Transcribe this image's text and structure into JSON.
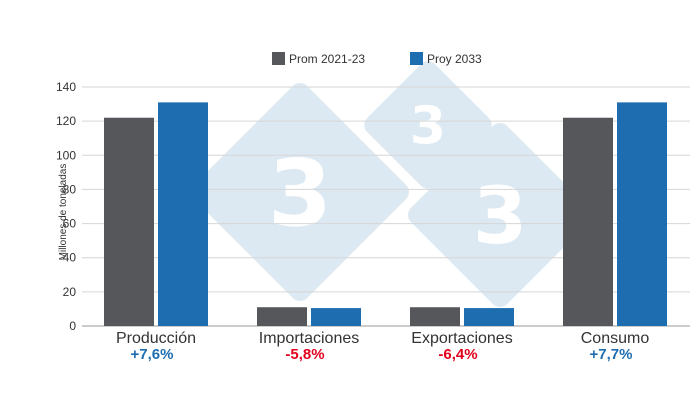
{
  "chart_data": {
    "type": "bar",
    "ylabel": "Millones de toneladas",
    "ylim": [
      0,
      140
    ],
    "yticks": [
      0,
      20,
      40,
      60,
      80,
      100,
      120,
      140
    ],
    "grid": true,
    "legend_position": "top",
    "categories": [
      "Producción",
      "Importaciones",
      "Exportaciones",
      "Consumo"
    ],
    "series": [
      {
        "name": "Prom 2021-23",
        "color": "#55575b",
        "values": [
          122,
          11,
          11,
          122
        ]
      },
      {
        "name": "Proy 2033",
        "color": "#1f6db1",
        "values": [
          131,
          10.5,
          10.5,
          131
        ]
      }
    ],
    "annotations": [
      {
        "category": "Producción",
        "text": "+7,6%",
        "color": "#1f6db1"
      },
      {
        "category": "Importaciones",
        "text": "-5,8%",
        "color": "#e3001b"
      },
      {
        "category": "Exportaciones",
        "text": "-6,4%",
        "color": "#e3001b"
      },
      {
        "category": "Consumo",
        "text": "+7,7%",
        "color": "#1f6db1"
      }
    ]
  },
  "watermark": {
    "glyph": "3",
    "color": "#dde9f2"
  }
}
